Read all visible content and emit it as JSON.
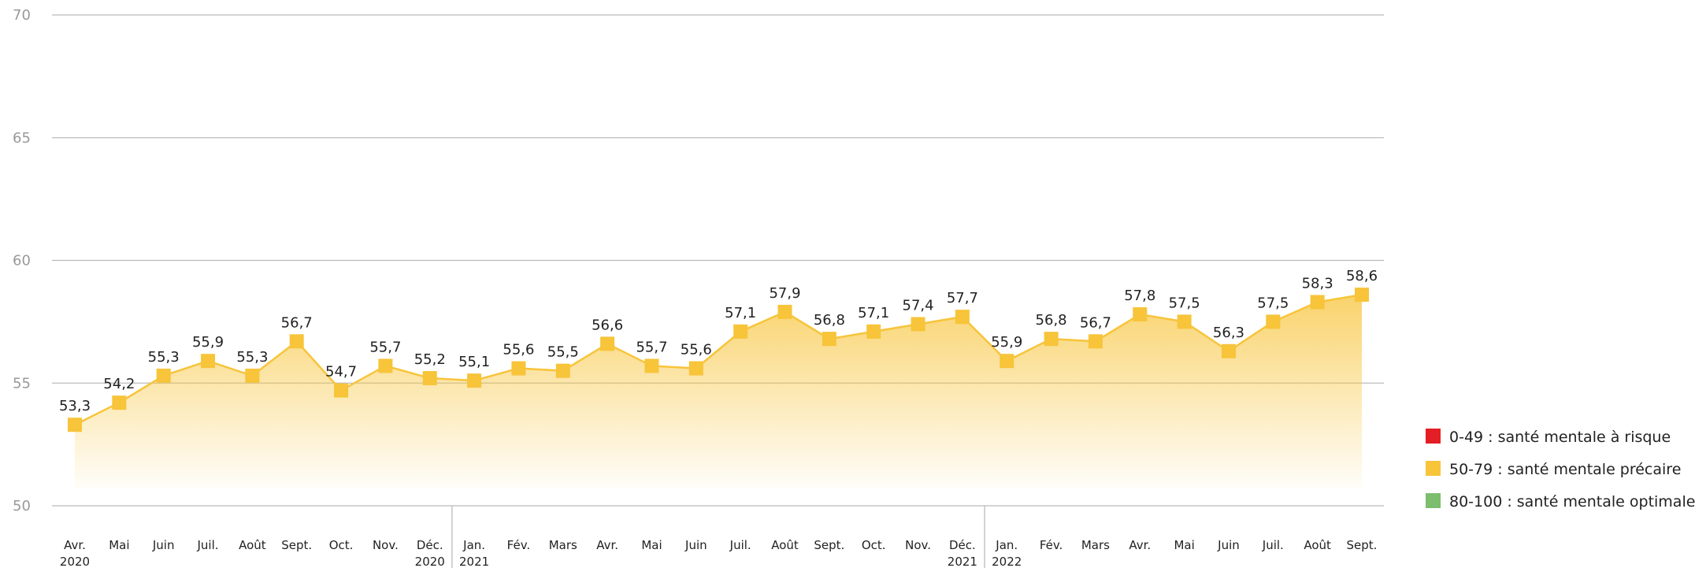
{
  "chart_data": {
    "type": "line",
    "categories": [
      "Avr.\n2020",
      "Mai",
      "Juin",
      "Juil.",
      "Août",
      "Sept.",
      "Oct.",
      "Nov.",
      "Déc.\n2020",
      "Jan.\n2021",
      "Fév.",
      "Mars",
      "Avr.",
      "Mai",
      "Juin",
      "Juil.",
      "Août",
      "Sept.",
      "Oct.",
      "Nov.",
      "Déc.\n2021",
      "Jan.\n2022",
      "Fév.",
      "Mars",
      "Avr.",
      "Mai",
      "Juin",
      "Juil.",
      "Août",
      "Sept."
    ],
    "series": [
      {
        "color": "#f7c43a",
        "values": [
          53.3,
          54.2,
          55.3,
          55.9,
          55.3,
          56.7,
          54.7,
          55.7,
          55.2,
          55.1,
          55.6,
          55.5,
          56.6,
          55.7,
          55.6,
          57.1,
          57.9,
          56.8,
          57.1,
          57.4,
          57.7,
          55.9,
          56.8,
          56.7,
          57.8,
          57.5,
          56.3,
          57.5,
          58.3,
          58.6
        ],
        "value_labels": [
          "53,3",
          "54,2",
          "55,3",
          "55,9",
          "55,3",
          "56,7",
          "54,7",
          "55,7",
          "55,2",
          "55,1",
          "55,6",
          "55,5",
          "56,6",
          "55,7",
          "55,6",
          "57,1",
          "57,9",
          "56,8",
          "57,1",
          "57,4",
          "57,7",
          "55,9",
          "56,8",
          "56,7",
          "57,8",
          "57,5",
          "56,3",
          "57,5",
          "58,3",
          "58,6"
        ]
      }
    ],
    "ylim": [
      50,
      70
    ],
    "yticks": [
      50,
      55,
      60,
      65,
      70
    ],
    "grid": true,
    "legend": [
      {
        "label": "0-49 : santé mentale à risque",
        "color": "#e31e24"
      },
      {
        "label": "50-79 : santé mentale précaire",
        "color": "#f7c43a"
      },
      {
        "label": "80-100 : santé mentale optimale",
        "color": "#7dbd6e"
      }
    ]
  }
}
